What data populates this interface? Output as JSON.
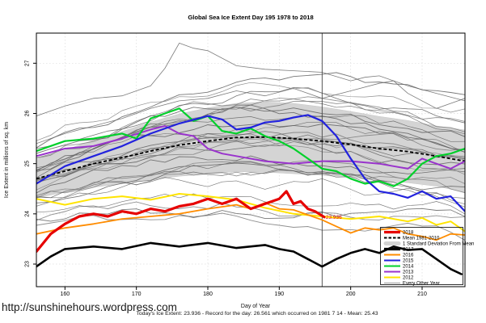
{
  "title": "Global Sea Ice Extent Day 195 1978 to 2018",
  "watermark": "http://sunshinehours.wordpress.com",
  "caption": "Today's Ice Extent: 23.936  - Record for the day: 26.561 which occurred on 1981 7 14  - Mean: 25.43",
  "chart_data": {
    "type": "line",
    "title": "Global Sea Ice Extent Day 195 1978 to 2018",
    "xlabel": "Day of Year",
    "ylabel": "Ice Extent in millions of sq. km",
    "xlim": [
      156,
      216
    ],
    "ylim": [
      22.55,
      27.6
    ],
    "xticks": [
      160,
      170,
      180,
      190,
      200,
      210
    ],
    "yticks": [
      23,
      24,
      25,
      26,
      27
    ],
    "grid": true,
    "legend_position": "bottom-right-inside",
    "marker_line_x": 196,
    "annotation": {
      "text": "23.936",
      "x": 196.4,
      "y": 23.936,
      "color": "#e60000"
    },
    "x_sample": [
      156,
      160,
      164,
      168,
      172,
      176,
      180,
      184,
      188,
      192,
      196,
      200,
      204,
      208,
      212,
      216
    ],
    "mean_1981_2010": {
      "label": "Mean 1981-2010",
      "color": "#000000",
      "values": [
        24.7,
        24.85,
        25.0,
        25.12,
        25.25,
        25.37,
        25.45,
        25.52,
        25.53,
        25.5,
        25.45,
        25.38,
        25.3,
        25.24,
        25.15,
        25.05
      ]
    },
    "std_band": {
      "label": "1 Standard Deviation From Mean",
      "color": "#d2d2d2",
      "sd": [
        0.38,
        0.42,
        0.47,
        0.52,
        0.58,
        0.62,
        0.66,
        0.68,
        0.7,
        0.7,
        0.68,
        0.66,
        0.64,
        0.62,
        0.6,
        0.62
      ]
    },
    "series": [
      {
        "name": "2012",
        "color": "#ffe400",
        "width": 2,
        "x": [
          156,
          160,
          164,
          168,
          172,
          176,
          180,
          184,
          188,
          192,
          196,
          200,
          204,
          208,
          210,
          212,
          214,
          216
        ],
        "values": [
          24.3,
          24.18,
          24.3,
          24.35,
          24.28,
          24.4,
          24.35,
          24.28,
          24.12,
          24.0,
          23.95,
          23.9,
          23.95,
          23.85,
          23.92,
          23.78,
          23.85,
          23.65
        ]
      },
      {
        "name": "2013",
        "color": "#9933cc",
        "width": 2,
        "x": [
          156,
          160,
          164,
          168,
          172,
          174,
          176,
          178,
          180,
          182,
          184,
          188,
          192,
          196,
          200,
          204,
          206,
          208,
          210,
          212,
          214,
          216
        ],
        "values": [
          25.15,
          25.3,
          25.35,
          25.5,
          25.68,
          25.75,
          25.6,
          25.55,
          25.3,
          25.2,
          25.15,
          25.05,
          25.0,
          25.05,
          25.05,
          25.0,
          24.95,
          24.9,
          25.1,
          25.0,
          24.9,
          25.05
        ]
      },
      {
        "name": "2014",
        "color": "#00d02a",
        "width": 2.2,
        "x": [
          156,
          160,
          164,
          168,
          170,
          172,
          174,
          176,
          178,
          180,
          182,
          184,
          186,
          188,
          190,
          192,
          194,
          196,
          198,
          200,
          202,
          204,
          206,
          208,
          210,
          212,
          214,
          216
        ],
        "values": [
          25.25,
          25.45,
          25.5,
          25.6,
          25.5,
          25.9,
          26.0,
          26.1,
          25.85,
          25.95,
          25.65,
          25.6,
          25.7,
          25.55,
          25.45,
          25.3,
          25.1,
          24.9,
          24.85,
          24.7,
          24.6,
          24.65,
          24.55,
          24.7,
          25.0,
          25.15,
          25.2,
          25.3
        ]
      },
      {
        "name": "2015",
        "color": "#2222dd",
        "width": 2.2,
        "x": [
          156,
          160,
          164,
          168,
          172,
          176,
          180,
          182,
          184,
          186,
          188,
          190,
          192,
          194,
          196,
          198,
          200,
          202,
          204,
          206,
          208,
          210,
          212,
          214,
          216
        ],
        "values": [
          24.6,
          24.95,
          25.15,
          25.35,
          25.6,
          25.8,
          25.95,
          25.88,
          25.68,
          25.72,
          25.82,
          25.85,
          25.92,
          25.97,
          25.85,
          25.55,
          25.1,
          24.7,
          24.45,
          24.4,
          24.32,
          24.45,
          24.3,
          24.35,
          24.05
        ]
      },
      {
        "name": "2016",
        "color": "#ff8c00",
        "width": 1.8,
        "x": [
          156,
          160,
          164,
          168,
          172,
          176,
          180,
          184,
          186,
          188,
          190,
          192,
          196,
          198,
          200,
          202,
          204,
          206,
          208,
          210,
          212,
          214,
          216
        ],
        "values": [
          23.6,
          23.72,
          23.8,
          23.9,
          23.95,
          24.0,
          24.1,
          24.18,
          24.1,
          24.22,
          24.1,
          24.08,
          23.88,
          23.75,
          23.62,
          23.72,
          23.68,
          23.72,
          23.6,
          23.55,
          23.48,
          23.6,
          23.58
        ]
      },
      {
        "name": "2017",
        "color": "#000000",
        "width": 2.6,
        "x": [
          156,
          158,
          160,
          164,
          168,
          172,
          176,
          180,
          184,
          188,
          190,
          192,
          194,
          196,
          198,
          200,
          202,
          204,
          206,
          208,
          210,
          212,
          214,
          215.5
        ],
        "values": [
          22.95,
          23.15,
          23.3,
          23.35,
          23.3,
          23.42,
          23.35,
          23.42,
          23.32,
          23.38,
          23.3,
          23.25,
          23.1,
          22.95,
          23.1,
          23.22,
          23.3,
          23.22,
          23.35,
          23.28,
          23.3,
          23.1,
          22.9,
          22.8
        ]
      },
      {
        "name": "2018",
        "color": "#e60000",
        "width": 3.2,
        "x": [
          156,
          158,
          160,
          162,
          164,
          166,
          168,
          170,
          172,
          174,
          176,
          178,
          180,
          182,
          184,
          186,
          188,
          190,
          191,
          192,
          193,
          194,
          195,
          196.3
        ],
        "values": [
          23.25,
          23.6,
          23.8,
          23.95,
          24.0,
          23.95,
          24.05,
          24.0,
          24.1,
          24.05,
          24.15,
          24.2,
          24.3,
          24.2,
          24.3,
          24.1,
          24.2,
          24.3,
          24.45,
          24.2,
          24.25,
          24.1,
          24.05,
          23.936
        ]
      }
    ],
    "background_years": {
      "label": "Every Other Year",
      "color": "#6e6e6e",
      "explicit": [
        {
          "x": [
            156,
            160,
            164,
            168,
            172,
            174,
            176,
            178,
            180,
            184,
            188,
            192,
            196,
            200,
            202,
            204,
            208,
            212,
            216
          ],
          "values": [
            25.95,
            26.15,
            26.3,
            26.35,
            26.55,
            26.9,
            27.4,
            27.3,
            27.25,
            26.95,
            26.88,
            26.85,
            26.82,
            26.65,
            26.72,
            26.75,
            26.55,
            26.4,
            26.25
          ]
        },
        {
          "x": [
            156,
            160,
            164,
            168,
            172,
            176,
            180,
            184,
            188,
            192,
            196,
            200,
            204,
            206,
            208,
            212,
            216
          ],
          "values": [
            25.4,
            25.6,
            25.75,
            25.9,
            26.1,
            26.25,
            26.3,
            26.45,
            26.35,
            26.5,
            26.3,
            26.45,
            26.6,
            26.65,
            26.4,
            26.1,
            26.3
          ]
        }
      ],
      "generated": {
        "count": 30,
        "seed": 11,
        "noise_step": 0.2,
        "offsets": [
          -1.6,
          -1.45,
          -1.25,
          -1.1,
          -0.95,
          -0.85,
          -0.75,
          -0.65,
          -0.55,
          -0.5,
          -0.42,
          -0.35,
          -0.3,
          -0.22,
          -0.15,
          -0.1,
          -0.05,
          0.02,
          0.08,
          0.15,
          0.22,
          0.3,
          0.38,
          0.45,
          0.55,
          0.65,
          0.78,
          0.88,
          1.0,
          1.1
        ]
      }
    }
  },
  "legend": {
    "items": [
      {
        "label": "2018",
        "color": "#e60000",
        "style": "thick"
      },
      {
        "label": "Mean 1981-2010",
        "color": "#000000",
        "style": "dashed"
      },
      {
        "label": "1 Standard Deviation From Mean",
        "color": "#d2d2d2",
        "style": "band"
      },
      {
        "label": "2017",
        "color": "#000000",
        "style": "thick"
      },
      {
        "label": "2016",
        "color": "#ff8c00",
        "style": "line"
      },
      {
        "label": "2015",
        "color": "#2222dd",
        "style": "line"
      },
      {
        "label": "2014",
        "color": "#00d02a",
        "style": "line"
      },
      {
        "label": "2013",
        "color": "#9933cc",
        "style": "line"
      },
      {
        "label": "2012",
        "color": "#ffe400",
        "style": "line"
      },
      {
        "label": "Every Other Year",
        "color": "#787878",
        "style": "thin"
      }
    ]
  }
}
